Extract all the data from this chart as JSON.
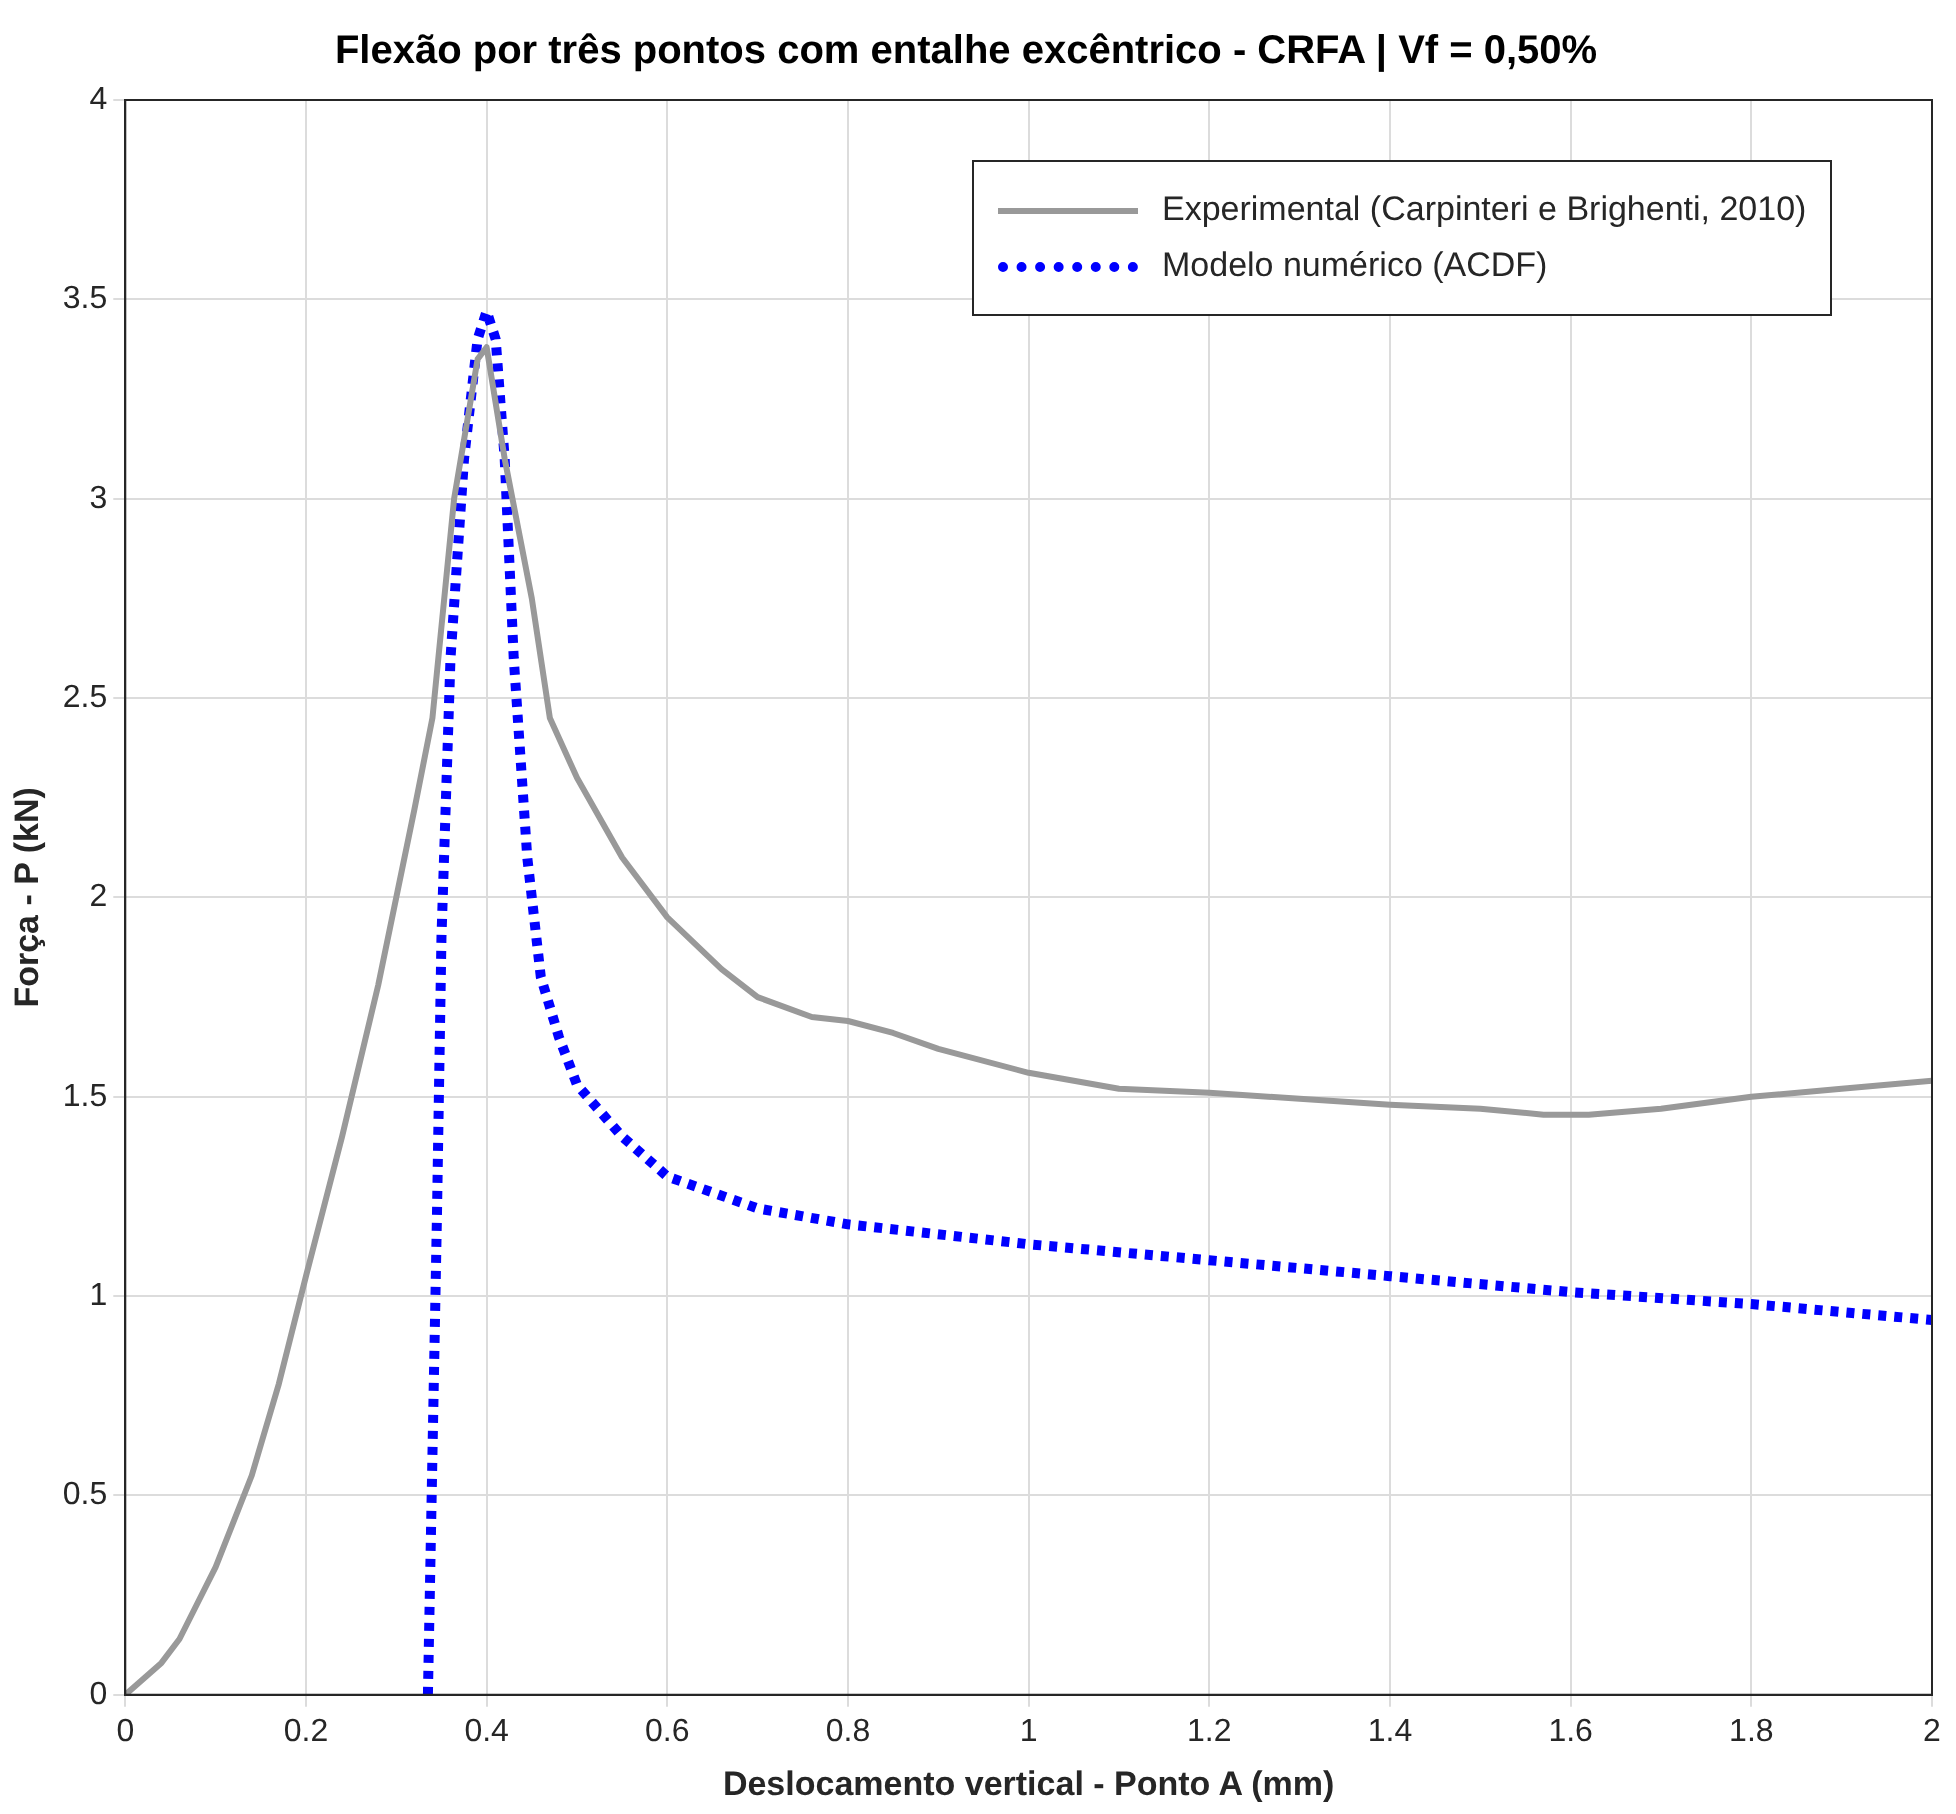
{
  "chart_data": {
    "type": "line",
    "title": "Flexão por três pontos com entalhe excêntrico - CRFA | Vf = 0,50%",
    "xlabel": "Deslocamento vertical - Ponto A (mm)",
    "ylabel": "Força - P (kN)",
    "xlim": [
      0,
      2
    ],
    "ylim": [
      0,
      4
    ],
    "xticks": [
      0,
      0.2,
      0.4,
      0.6,
      0.8,
      1,
      1.2,
      1.4,
      1.6,
      1.8,
      2
    ],
    "yticks": [
      0,
      0.5,
      1,
      1.5,
      2,
      2.5,
      3,
      3.5,
      4
    ],
    "grid": true,
    "legend": "top right",
    "marker": "none",
    "series": [
      {
        "name": "Experimental (Carpinteri e Brighenti, 2010)",
        "color": "#999999",
        "line_style": "solid",
        "x": [
          0,
          0.04,
          0.06,
          0.1,
          0.14,
          0.17,
          0.2,
          0.24,
          0.28,
          0.3,
          0.32,
          0.34,
          0.364,
          0.39,
          0.4,
          0.42,
          0.45,
          0.47,
          0.5,
          0.55,
          0.6,
          0.66,
          0.7,
          0.76,
          0.8,
          0.85,
          0.9,
          1.0,
          1.1,
          1.2,
          1.3,
          1.4,
          1.5,
          1.57,
          1.62,
          1.7,
          1.8,
          1.9,
          2.0
        ],
        "values": [
          0,
          0.08,
          0.14,
          0.32,
          0.55,
          0.78,
          1.05,
          1.4,
          1.78,
          2.0,
          2.22,
          2.45,
          3.0,
          3.35,
          3.38,
          3.1,
          2.75,
          2.45,
          2.3,
          2.1,
          1.95,
          1.82,
          1.75,
          1.7,
          1.69,
          1.66,
          1.62,
          1.56,
          1.52,
          1.51,
          1.495,
          1.48,
          1.47,
          1.455,
          1.455,
          1.47,
          1.5,
          1.52,
          1.54
        ]
      },
      {
        "name": "Modelo numérico (ACDF)",
        "color": "#0000ff",
        "line_style": "dotted",
        "x": [
          0.335,
          0.34,
          0.345,
          0.35,
          0.36,
          0.375,
          0.39,
          0.4,
          0.41,
          0.42,
          0.43,
          0.445,
          0.46,
          0.48,
          0.5,
          0.55,
          0.6,
          0.7,
          0.8,
          1.0,
          1.2,
          1.4,
          1.6,
          1.8,
          2.0
        ],
        "values": [
          0,
          0.6,
          1.2,
          1.9,
          2.6,
          3.1,
          3.4,
          3.47,
          3.4,
          3.1,
          2.6,
          2.1,
          1.8,
          1.65,
          1.53,
          1.4,
          1.3,
          1.22,
          1.18,
          1.13,
          1.09,
          1.05,
          1.01,
          0.98,
          0.94
        ]
      }
    ]
  }
}
